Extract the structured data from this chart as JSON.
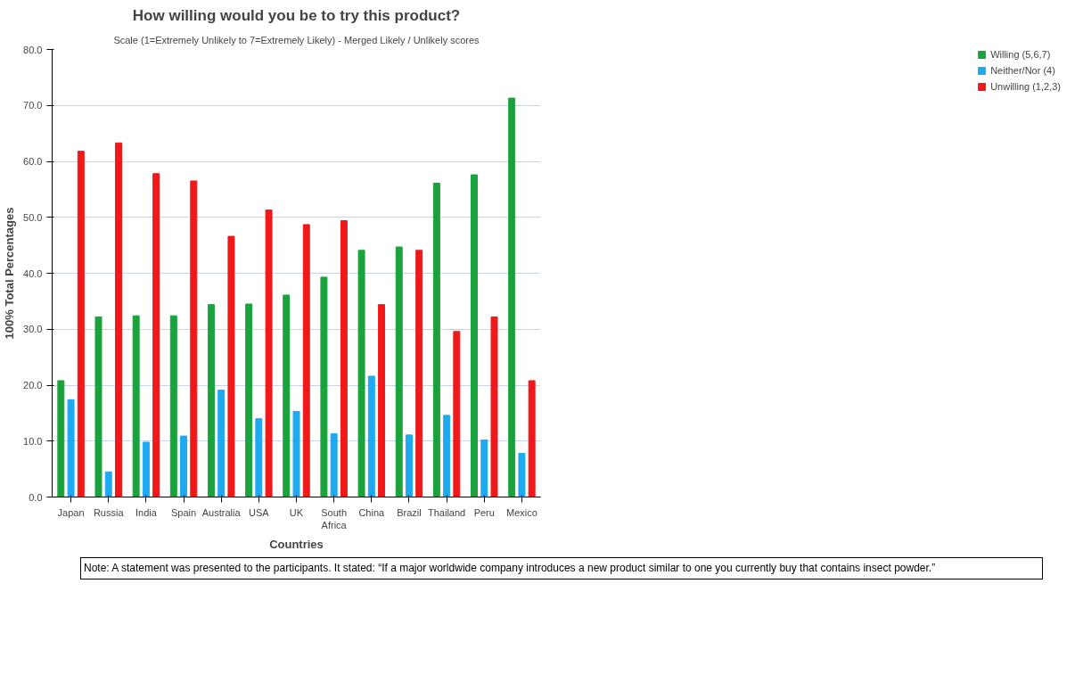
{
  "chart_data": {
    "type": "bar",
    "title": "How willing would you be to try this product?",
    "subtitle": "Scale (1=Extremely Unlikely to 7=Extremely Likely) - Merged Likely / Unlikely scores",
    "xlabel": "Countries",
    "ylabel": "100% Total Percentages",
    "categories": [
      "Japan",
      "Russia",
      "India",
      "Spain",
      "Australia",
      "USA",
      "UK",
      "South Africa",
      "China",
      "Brazil",
      "Thailand",
      "Peru",
      "Mexico"
    ],
    "series": [
      {
        "name": "Willing (5,6,7)",
        "color": "#1aa33c",
        "values": [
          20.8,
          32.2,
          32.4,
          32.4,
          34.4,
          34.5,
          36.1,
          39.3,
          44.1,
          44.7,
          56.1,
          57.6,
          71.3
        ]
      },
      {
        "name": "Neither/Nor (4)",
        "color": "#1eaaf1",
        "values": [
          17.4,
          4.5,
          9.8,
          10.9,
          19.1,
          14.0,
          15.3,
          11.3,
          21.6,
          11.1,
          14.6,
          10.2,
          7.8
        ]
      },
      {
        "name": "Unwilling (1,2,3)",
        "color": "#f01818",
        "values": [
          61.8,
          63.3,
          57.8,
          56.5,
          46.6,
          51.3,
          48.7,
          49.4,
          34.4,
          44.1,
          29.6,
          32.2,
          20.8
        ]
      }
    ],
    "ylim": [
      0,
      80
    ],
    "yticks": [
      {
        "value": 0,
        "label": "0.0"
      },
      {
        "value": 10,
        "label": "10.0"
      },
      {
        "value": 20,
        "label": "20.0"
      },
      {
        "value": 30,
        "label": "30.0"
      },
      {
        "value": 40,
        "label": "40.0"
      },
      {
        "value": 50,
        "label": "50.0"
      },
      {
        "value": 60,
        "label": "60.0"
      },
      {
        "value": 70,
        "label": "70.0"
      },
      {
        "value": 80,
        "label": "80.0"
      }
    ],
    "grid": "y",
    "legend": "top right",
    "annotations": [
      "Note: A statement was presented to the participants. It stated: “If a major worldwide company introduces a new product similar to one you currently buy that contains insect powder.”"
    ]
  }
}
